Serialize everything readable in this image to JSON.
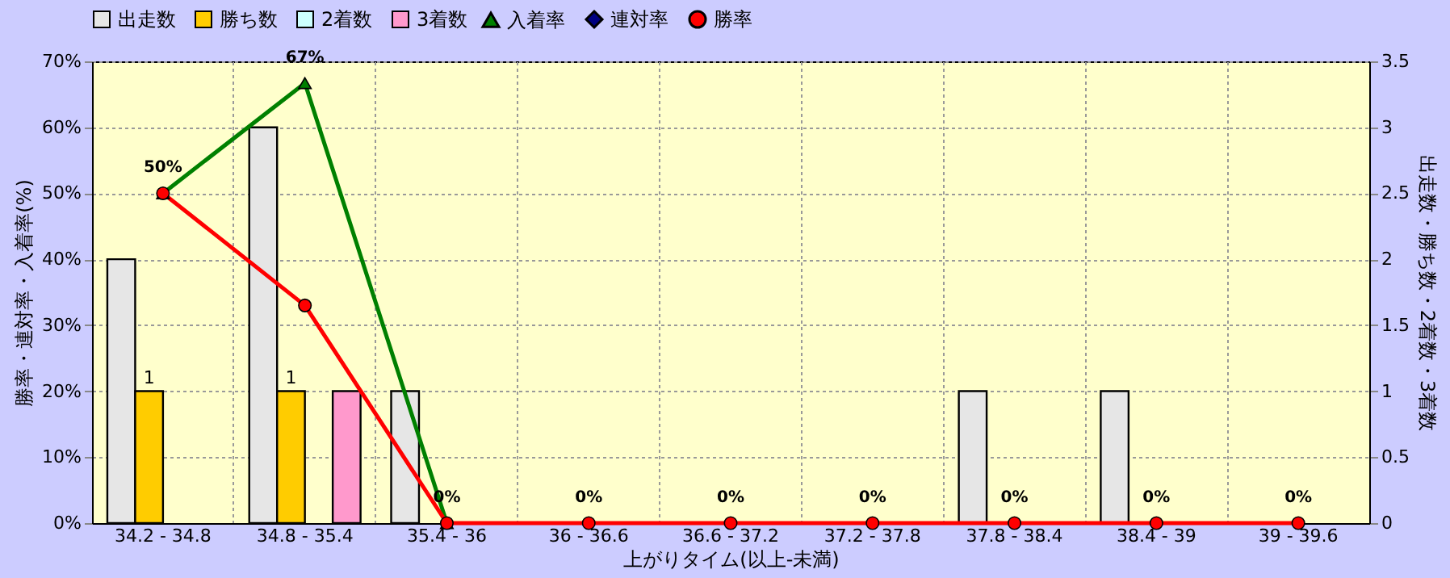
{
  "chart_data": {
    "type": "bar",
    "xlabel": "上がりタイム(以上-未満)",
    "ylabel": "勝率・連対率・入着率(%)",
    "y2label": "出走数・勝ち数・2着数・3着数",
    "categories": [
      "34.2 - 34.8",
      "34.8 - 35.4",
      "35.4 - 36",
      "36 - 36.6",
      "36.6 - 37.2",
      "37.2 - 37.8",
      "37.8 - 38.4",
      "38.4 - 39",
      "39 - 39.6"
    ],
    "series": [
      {
        "name": "出走数",
        "axis": "y2",
        "color": "#e6e6e6",
        "values": [
          2,
          3,
          1,
          0,
          0,
          0,
          1,
          1,
          0
        ]
      },
      {
        "name": "勝ち数",
        "axis": "y2",
        "color": "#ffcc00",
        "values": [
          1,
          1,
          0,
          0,
          0,
          0,
          0,
          0,
          0
        ],
        "value_labels": [
          "1",
          "1",
          null,
          null,
          null,
          null,
          null,
          null,
          null
        ]
      },
      {
        "name": "2着数",
        "axis": "y2",
        "color": "#ccffff",
        "values": [
          0,
          0,
          0,
          0,
          0,
          0,
          0,
          0,
          0
        ]
      },
      {
        "name": "3着数",
        "axis": "y2",
        "color": "#ff99cc",
        "values": [
          0,
          1,
          0,
          0,
          0,
          0,
          0,
          0,
          0
        ]
      },
      {
        "name": "入着率",
        "type": "line",
        "color": "#008000",
        "marker": "triangle",
        "values": [
          50,
          66.7,
          0,
          null,
          null,
          null,
          null,
          null,
          null
        ],
        "value_labels": [
          "50%",
          "67%",
          "0%",
          null,
          null,
          null,
          null,
          null,
          null
        ]
      },
      {
        "name": "連対率",
        "type": "line",
        "color": "#000080",
        "marker": "diamond",
        "values": [
          null,
          null,
          null,
          null,
          null,
          null,
          null,
          null,
          null
        ]
      },
      {
        "name": "勝率",
        "type": "line",
        "color": "#ff0000",
        "marker": "circle",
        "values": [
          50,
          33,
          0,
          0,
          0,
          0,
          0,
          0,
          0
        ],
        "value_labels": [
          null,
          null,
          null,
          "0%",
          "0%",
          "0%",
          "0%",
          "0%",
          "0%"
        ]
      }
    ],
    "ylim": [
      0,
      70
    ],
    "yticks": [
      {
        "value": 0,
        "label": "0%"
      },
      {
        "value": 10,
        "label": "10%"
      },
      {
        "value": 20,
        "label": "20%"
      },
      {
        "value": 30,
        "label": "30%"
      },
      {
        "value": 40,
        "label": "40%"
      },
      {
        "value": 50,
        "label": "50%"
      },
      {
        "value": 60,
        "label": "60%"
      },
      {
        "value": 70,
        "label": "70%"
      }
    ],
    "y2lim": [
      0,
      3.5
    ],
    "y2ticks": [
      0,
      0.5,
      1,
      1.5,
      2,
      2.5,
      3,
      3.5
    ],
    "grid": true,
    "legend": "top"
  }
}
